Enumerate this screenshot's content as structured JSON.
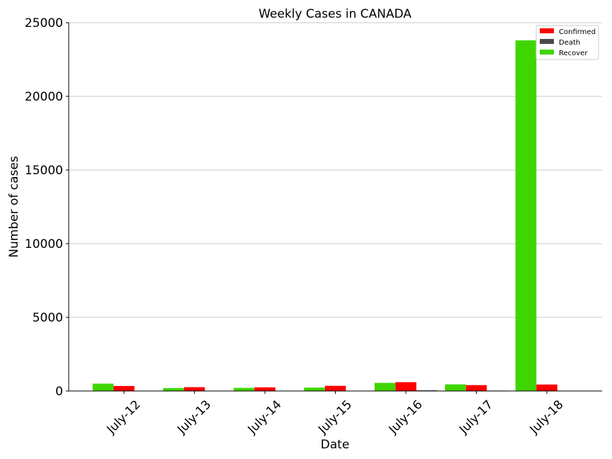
{
  "chart_data": {
    "type": "bar",
    "title": "Weekly Cases in CANADA",
    "xlabel": "Date",
    "ylabel": "Number of cases",
    "categories": [
      "July-12",
      "July-13",
      "July-14",
      "July-15",
      "July-16",
      "July-17",
      "July-18"
    ],
    "ylim": [
      0,
      25000
    ],
    "yticks": [
      0,
      5000,
      10000,
      15000,
      20000,
      25000
    ],
    "grid": "horizontal",
    "legend_position": "top-right",
    "series": [
      {
        "name": "Recover",
        "color": "#3fd600",
        "values": [
          500,
          200,
          210,
          230,
          550,
          450,
          23800
        ]
      },
      {
        "name": "Confirmed",
        "color": "#ff0000",
        "values": [
          340,
          260,
          250,
          350,
          600,
          400,
          440
        ]
      },
      {
        "name": "Death",
        "color": "#4a4a4a",
        "values": [
          8,
          5,
          5,
          6,
          45,
          30,
          10
        ]
      }
    ],
    "legend_order": [
      "Confirmed",
      "Death",
      "Recover"
    ]
  }
}
